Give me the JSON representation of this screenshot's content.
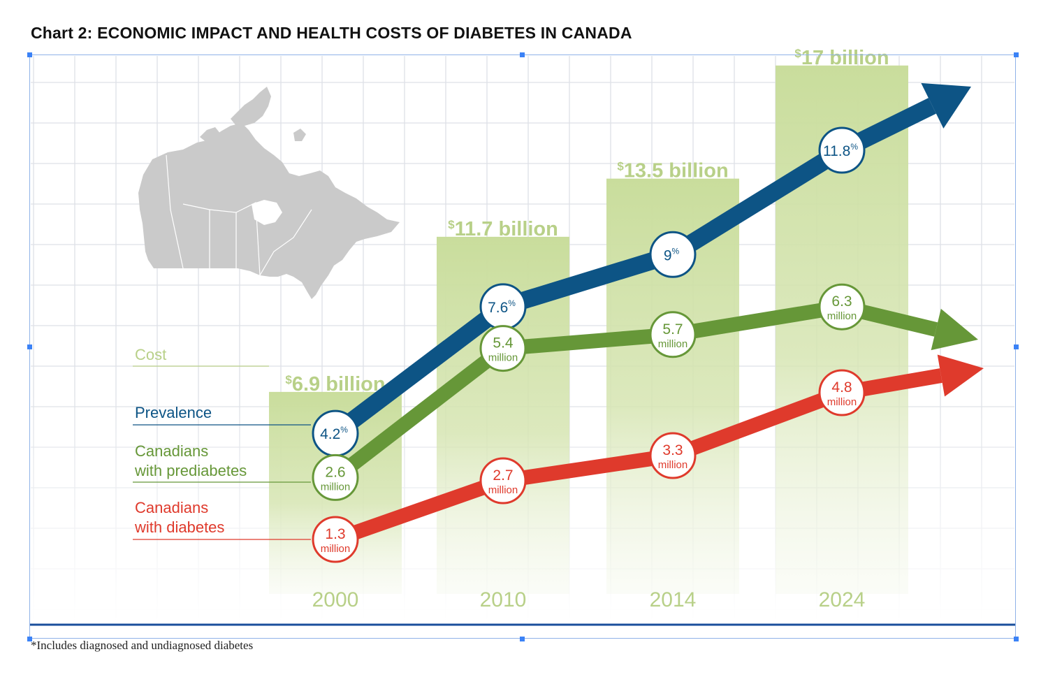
{
  "title": "Chart 2: ECONOMIC IMPACT AND HEALTH COSTS OF DIABETES IN CANADA",
  "footnote": "*Includes diagnosed and undiagnosed diabetes",
  "colors": {
    "cost": "#c9dd9c",
    "cost_label": "#b8d088",
    "prevalence": "#0d5485",
    "prediabetes": "#669738",
    "diabetes": "#df3a2c",
    "grid": "#dde0e6",
    "map": "#cacaca",
    "baseline": "#1a4f9c"
  },
  "icons": {
    "map": "canada-map-icon"
  },
  "chart_data": {
    "type": "bar",
    "categories": [
      "2000",
      "2010",
      "2014",
      "2024"
    ],
    "cost": {
      "name": "Cost",
      "values": [
        6.9,
        11.7,
        13.5,
        17
      ],
      "labels": [
        {
          "currency": "$",
          "amount": "6.9 billion"
        },
        {
          "currency": "$",
          "amount": "11.7 billion"
        },
        {
          "currency": "$",
          "amount": "13.5 billion"
        },
        {
          "currency": "$",
          "amount": "17 billion"
        }
      ]
    },
    "series": [
      {
        "name": "Prevalence",
        "unit": "%",
        "values": [
          4.2,
          7.6,
          9,
          11.8
        ],
        "labels": [
          "4.2",
          "7.6",
          "9",
          "11.8"
        ]
      },
      {
        "name": "Canadians with prediabetes",
        "name_lines": [
          "Canadians",
          "with prediabetes"
        ],
        "unit": "million",
        "values": [
          2.6,
          5.4,
          5.7,
          6.3
        ],
        "labels": [
          "2.6",
          "5.4",
          "5.7",
          "6.3"
        ]
      },
      {
        "name": "Canadians with diabetes",
        "name_lines": [
          "Canadians",
          "with diabetes"
        ],
        "unit": "million",
        "values": [
          1.3,
          2.7,
          3.3,
          4.8
        ],
        "labels": [
          "1.3",
          "2.7",
          "3.3",
          "4.8"
        ]
      }
    ],
    "grid": true,
    "legend": "left"
  }
}
